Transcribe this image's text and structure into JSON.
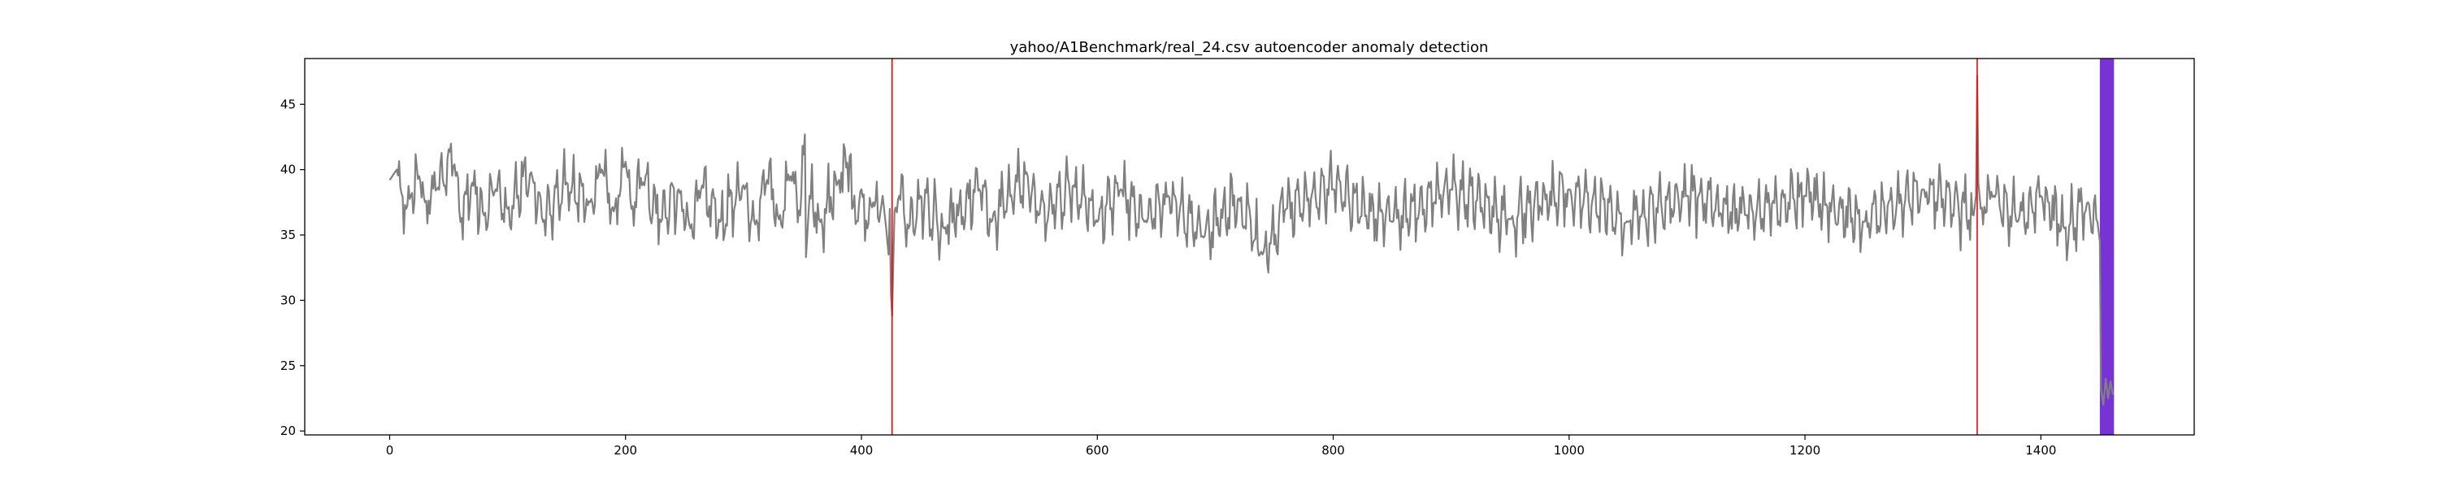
{
  "chart_data": {
    "type": "line",
    "title": "yahoo/A1Benchmark/real_24.csv autoencoder anomaly detection",
    "xlabel": "",
    "ylabel": "",
    "xlim": [
      -72,
      1530
    ],
    "ylim": [
      19.7,
      48.5
    ],
    "x_ticks": [
      0,
      200,
      400,
      600,
      800,
      1000,
      1200,
      1400
    ],
    "y_ticks": [
      20,
      25,
      30,
      35,
      40,
      45
    ],
    "grid": false,
    "legend": "none",
    "series": [
      {
        "color": "#808080",
        "x_start": 0,
        "x_end": 1450,
        "keypoints": [
          [
            0,
            39.2
          ],
          [
            3,
            39.6
          ],
          [
            6,
            40.0
          ],
          [
            10,
            38.2
          ],
          [
            14,
            37.0
          ],
          [
            18,
            38.0
          ],
          [
            25,
            39.5
          ],
          [
            30,
            37.5
          ],
          [
            40,
            38.5
          ],
          [
            55,
            40.4
          ],
          [
            60,
            36.0
          ],
          [
            70,
            39.0
          ],
          [
            80,
            36.5
          ],
          [
            90,
            38.5
          ],
          [
            100,
            37.0
          ],
          [
            120,
            39.8
          ],
          [
            130,
            36.0
          ],
          [
            150,
            39.0
          ],
          [
            170,
            37.5
          ],
          [
            180,
            40.0
          ],
          [
            190,
            36.8
          ],
          [
            200,
            40.6
          ],
          [
            205,
            37.0
          ],
          [
            215,
            39.0
          ],
          [
            230,
            36.0
          ],
          [
            245,
            38.5
          ],
          [
            255,
            35.5
          ],
          [
            265,
            38.8
          ],
          [
            280,
            36.0
          ],
          [
            300,
            38.8
          ],
          [
            310,
            35.8
          ],
          [
            320,
            39.2
          ],
          [
            330,
            36.2
          ],
          [
            340,
            39.5
          ],
          [
            348,
            36.5
          ],
          [
            352,
            42.7
          ],
          [
            353,
            33.3
          ],
          [
            356,
            38.0
          ],
          [
            365,
            36.0
          ],
          [
            380,
            39.0
          ],
          [
            391,
            41.2
          ],
          [
            392,
            37.0
          ],
          [
            400,
            38.5
          ],
          [
            405,
            35.5
          ],
          [
            410,
            37.5
          ],
          [
            415,
            36.0
          ],
          [
            418,
            38.0
          ],
          [
            421,
            35.5
          ],
          [
            423,
            33.5
          ],
          [
            424,
            37.0
          ],
          [
            425,
            30.5
          ],
          [
            426,
            28.8
          ],
          [
            428,
            36.8
          ],
          [
            432,
            38.0
          ],
          [
            440,
            35.5
          ],
          [
            450,
            38.0
          ],
          [
            470,
            35.5
          ],
          [
            500,
            38.5
          ],
          [
            510,
            36.0
          ],
          [
            540,
            39.8
          ],
          [
            550,
            36.5
          ],
          [
            580,
            38.8
          ],
          [
            600,
            36.0
          ],
          [
            620,
            38.5
          ],
          [
            640,
            36.0
          ],
          [
            660,
            38.0
          ],
          [
            690,
            34.8
          ],
          [
            720,
            37.8
          ],
          [
            740,
            33.5
          ],
          [
            760,
            37.0
          ],
          [
            800,
            38.5
          ],
          [
            850,
            36.0
          ],
          [
            900,
            38.5
          ],
          [
            950,
            36.2
          ],
          [
            1000,
            38.5
          ],
          [
            1050,
            36.0
          ],
          [
            1100,
            38.0
          ],
          [
            1150,
            36.5
          ],
          [
            1200,
            38.0
          ],
          [
            1250,
            36.0
          ],
          [
            1300,
            38.5
          ],
          [
            1343,
            36.5
          ],
          [
            1345,
            38.0
          ],
          [
            1346,
            47.2
          ],
          [
            1347,
            39.0
          ],
          [
            1349,
            37.0
          ],
          [
            1360,
            38.0
          ],
          [
            1380,
            36.0
          ],
          [
            1400,
            38.0
          ],
          [
            1420,
            35.5
          ],
          [
            1440,
            37.5
          ],
          [
            1448,
            36.0
          ],
          [
            1450,
            34.5
          ]
        ]
      }
    ],
    "anomalies": [
      {
        "type": "vline",
        "x": 426,
        "color": "#ff0000"
      },
      {
        "type": "vline",
        "x": 1346,
        "color": "#ff0000"
      },
      {
        "type": "span",
        "x_from": 1450,
        "x_to": 1462,
        "color": "#5500cc"
      }
    ]
  }
}
